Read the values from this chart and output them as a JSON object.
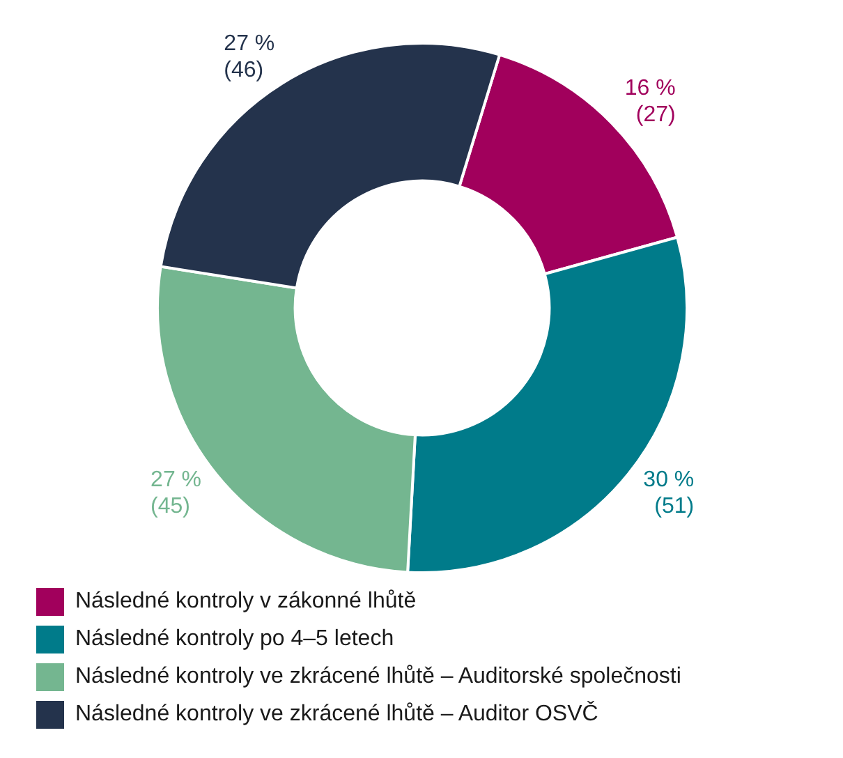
{
  "chart_data": {
    "type": "donut",
    "categories": [
      "Následné kontroly v zákonné lhůtě",
      "Následné kontroly po 4–5 letech",
      "Následné kontroly ve zkrácené lhůtě – Auditorské společnosti",
      "Následné kontroly ve zkrácené lhůtě – Auditor OSVČ"
    ],
    "values": [
      27,
      51,
      45,
      46
    ],
    "colors": [
      "#a1005c",
      "#007b8a",
      "#74b690",
      "#24334c"
    ],
    "value_labels": [
      "16 %\n(27)",
      "30 %\n(51)",
      "27 %\n(45)",
      "27 %\n(46)"
    ],
    "legend": "bottom"
  }
}
